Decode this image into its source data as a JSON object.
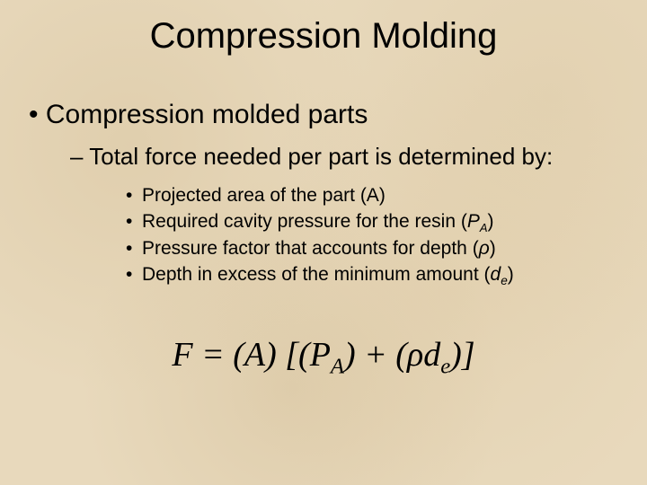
{
  "title": "Compression Molding",
  "level1": {
    "bullet": "•",
    "text": "Compression molded parts"
  },
  "level2": {
    "dash": "–",
    "text": "Total force needed per part is determined by:"
  },
  "level3": [
    {
      "bullet": "•",
      "text": "Projected area of the part (A)"
    },
    {
      "bullet": "•",
      "prefix": "Required cavity pressure for the resin (",
      "varP": "P",
      "subA": "A",
      "suffix": ")"
    },
    {
      "bullet": "•",
      "prefix": "Pressure factor that accounts for depth (",
      "varRho": "ρ",
      "suffix": ")"
    },
    {
      "bullet": "•",
      "prefix": "Depth in excess of the minimum amount (",
      "varD": "d",
      "subE": "e",
      "suffix": ")"
    }
  ],
  "formula": {
    "F": "F",
    "eq": " = (A) [(",
    "P": "P",
    "subA": "A",
    "mid": ") + (",
    "rho": "ρ",
    "d": "d",
    "subE": "e",
    "end": ")]"
  },
  "colors": {
    "background": "#e8d9bc",
    "text": "#000000"
  },
  "typography": {
    "title_fontsize": 40,
    "level1_fontsize": 30,
    "level2_fontsize": 26,
    "level3_fontsize": 21,
    "formula_fontsize": 38,
    "body_font": "Arial",
    "formula_font": "Times New Roman"
  }
}
